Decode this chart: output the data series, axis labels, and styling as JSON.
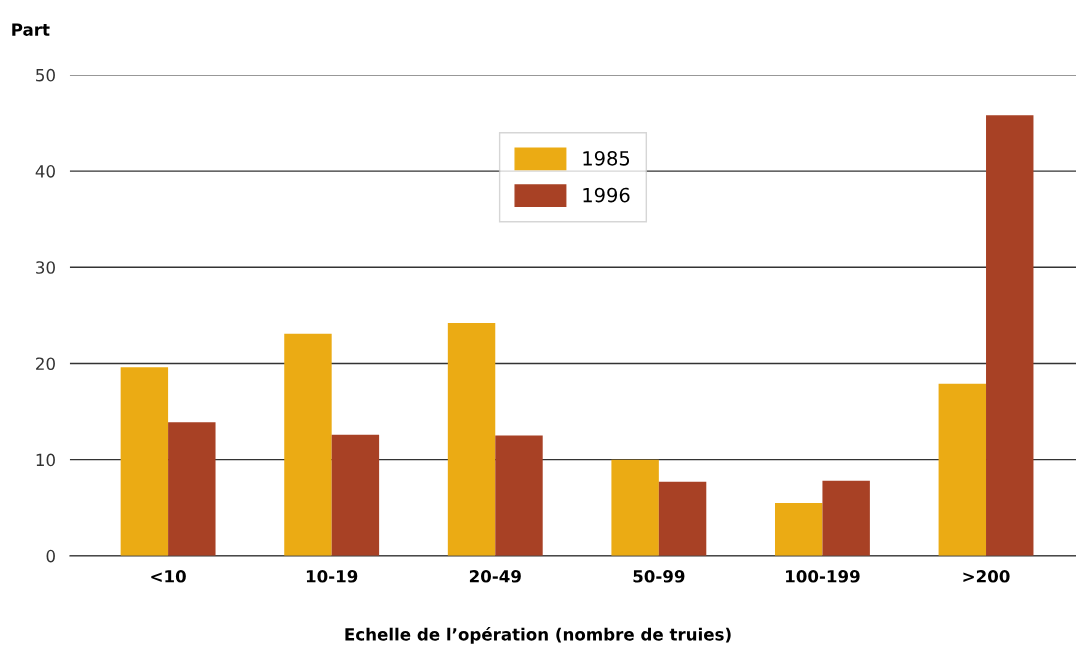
{
  "chart_data": {
    "type": "bar",
    "ylabel": "Part",
    "xlabel": "Echelle de l’opération (nombre de truies)",
    "categories": [
      "<10",
      "10-19",
      "20-49",
      "50-99",
      "100-199",
      ">200"
    ],
    "series": [
      {
        "name": "1985",
        "color": "#ebab14",
        "values": [
          19.6,
          23.1,
          24.2,
          10.0,
          5.5,
          17.9
        ]
      },
      {
        "name": "1996",
        "color": "#a84125",
        "values": [
          13.9,
          12.6,
          12.5,
          7.7,
          7.8,
          45.8
        ]
      }
    ],
    "ylim": [
      0,
      50
    ],
    "yticks": [
      0,
      10,
      20,
      30,
      40,
      50
    ],
    "grid": "y",
    "legend": "top"
  }
}
